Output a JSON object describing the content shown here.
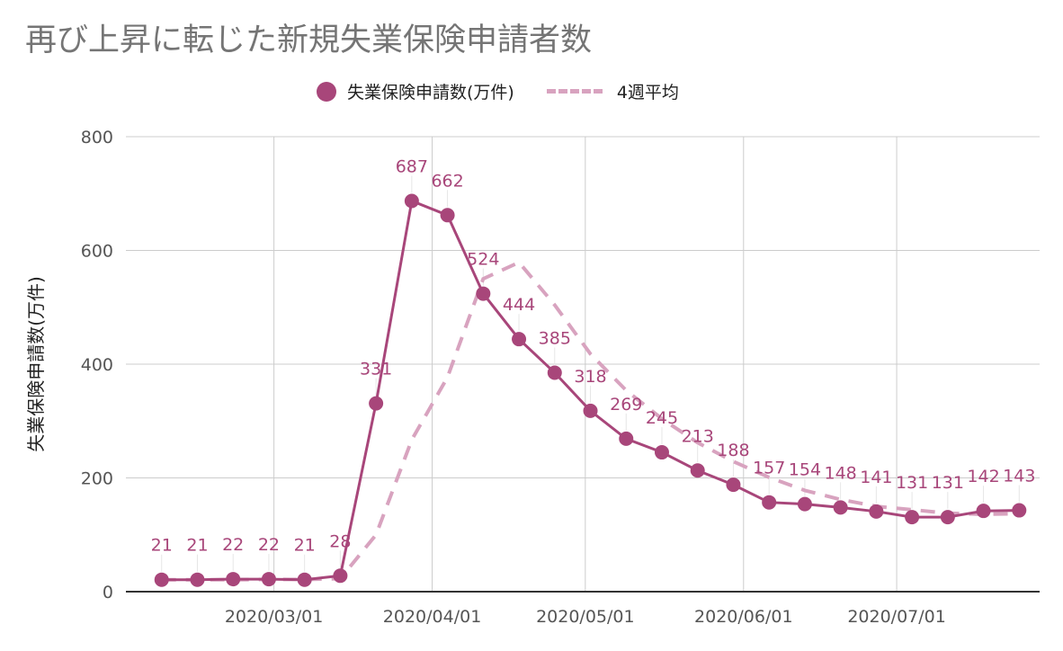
{
  "chart_data": {
    "type": "line",
    "title": "再び上昇に転じた新規失業保険申請者数",
    "ylabel": "失業保険申請数(万件)",
    "xlabel": "",
    "ylim": [
      0,
      800
    ],
    "yticks": [
      0,
      200,
      400,
      600,
      800
    ],
    "xticks": [
      "2020/03/01",
      "2020/04/01",
      "2020/05/01",
      "2020/06/01",
      "2020/07/01"
    ],
    "x": [
      "2020/02/08",
      "2020/02/15",
      "2020/02/22",
      "2020/02/29",
      "2020/03/07",
      "2020/03/14",
      "2020/03/21",
      "2020/03/28",
      "2020/04/04",
      "2020/04/11",
      "2020/04/18",
      "2020/04/25",
      "2020/05/02",
      "2020/05/09",
      "2020/05/16",
      "2020/05/23",
      "2020/05/30",
      "2020/06/06",
      "2020/06/13",
      "2020/06/20",
      "2020/06/27",
      "2020/07/04",
      "2020/07/11",
      "2020/07/18",
      "2020/07/25"
    ],
    "series": [
      {
        "name": "失業保険申請数(万件)",
        "style": "solid-markers",
        "color": "#a8467a",
        "values": [
          21,
          21,
          22,
          22,
          21,
          28,
          331,
          687,
          662,
          524,
          444,
          385,
          318,
          269,
          245,
          213,
          188,
          157,
          154,
          148,
          141,
          131,
          131,
          142,
          143
        ],
        "labels": [
          "21",
          "21",
          "22",
          "22",
          "21",
          "28",
          "331",
          "687",
          "662",
          "524",
          "444",
          "385",
          "318",
          "269",
          "245",
          "213",
          "188",
          "157",
          "154",
          "148",
          "141",
          "131",
          "131",
          "142",
          "143"
        ]
      },
      {
        "name": "4週平均",
        "style": "dashed",
        "color": "#d8a3bf",
        "values": [
          21,
          21,
          21,
          21.5,
          21.5,
          23,
          100,
          267,
          377,
          550,
          579,
          504,
          418,
          354,
          304,
          262,
          229,
          201,
          178,
          162,
          150,
          144,
          138,
          136,
          137
        ]
      }
    ],
    "grid": true,
    "legend_position": "top"
  }
}
